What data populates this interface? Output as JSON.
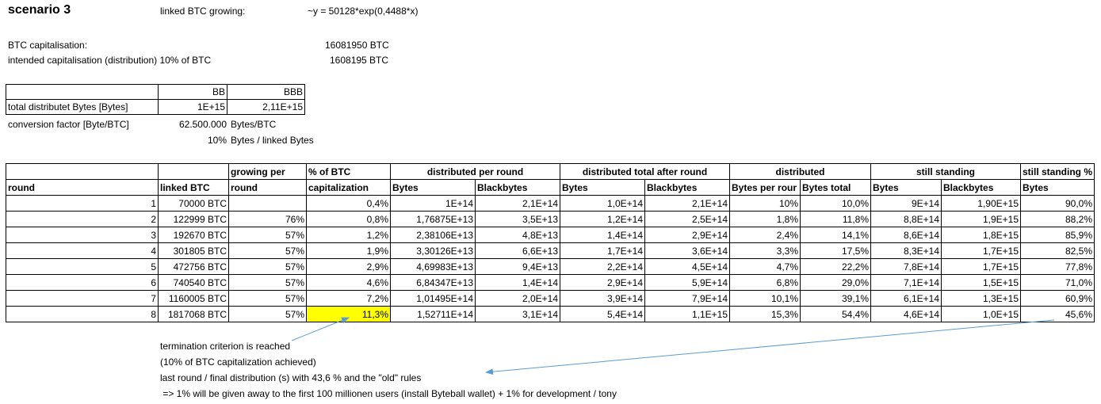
{
  "header": {
    "title": "scenario 3",
    "linked_label": "linked BTC growing:",
    "formula": "~y = 50128*exp(0,4488*x)"
  },
  "capitalisation": {
    "btc_label": "BTC capitalisation:",
    "btc_value": "16081950 BTC",
    "intended_label": "intended capitalisation (distribution) 10% of BTC",
    "intended_value": "1608195 BTC"
  },
  "bytes_table": {
    "col1": "BB",
    "col2": "BBB",
    "row_label": "total distributet Bytes [Bytes]",
    "bb_value": "1E+15",
    "bbb_value": "2,11E+15"
  },
  "conversion": {
    "label": "conversion factor [Byte/BTC]",
    "value": "62.500.000",
    "unit": "Bytes/BTC",
    "pct": "10%",
    "pct_unit": "Bytes / linked Bytes"
  },
  "main_table": {
    "headers_top": {
      "growing": "growing per",
      "pct_btc": "% of BTC",
      "distributed_per_round": "distributed per round",
      "distributed_total": "distributed total after round",
      "distributed": "distributed",
      "still_standing": "still standing",
      "still_standing_pct": "still standing %"
    },
    "headers_sub": {
      "round": "round",
      "linked_btc": "linked BTC",
      "growing": "round",
      "pct_btc": "capitalization",
      "dpr_bytes": "Bytes",
      "dpr_blackbytes": "Blackbytes",
      "dt_bytes": "Bytes",
      "dt_blackbytes": "Blackbytes",
      "d_bytes_per_round": "Bytes per rour",
      "d_bytes_total": "Bytes total",
      "ss_bytes": "Bytes",
      "ss_blackbytes": "Blackbytes",
      "ssp_bytes": "Bytes"
    },
    "rows": [
      [
        "1",
        "70000 BTC",
        "",
        "0,4%",
        "1E+14",
        "2,1E+14",
        "1,0E+14",
        "2,1E+14",
        "10%",
        "10,0%",
        "9E+14",
        "1,90E+15",
        "90,0%"
      ],
      [
        "2",
        "122999 BTC",
        "76%",
        "0,8%",
        "1,76875E+13",
        "3,5E+13",
        "1,2E+14",
        "2,5E+14",
        "1,8%",
        "11,8%",
        "8,8E+14",
        "1,9E+15",
        "88,2%"
      ],
      [
        "3",
        "192670 BTC",
        "57%",
        "1,2%",
        "2,38106E+13",
        "4,8E+13",
        "1,4E+14",
        "2,9E+14",
        "2,4%",
        "14,1%",
        "8,6E+14",
        "1,8E+15",
        "85,9%"
      ],
      [
        "4",
        "301805 BTC",
        "57%",
        "1,9%",
        "3,30126E+13",
        "6,6E+13",
        "1,7E+14",
        "3,6E+14",
        "3,3%",
        "17,5%",
        "8,3E+14",
        "1,7E+15",
        "82,5%"
      ],
      [
        "5",
        "472756 BTC",
        "57%",
        "2,9%",
        "4,69983E+13",
        "9,4E+13",
        "2,2E+14",
        "4,5E+14",
        "4,7%",
        "22,2%",
        "7,8E+14",
        "1,7E+15",
        "77,8%"
      ],
      [
        "6",
        "740540 BTC",
        "57%",
        "4,6%",
        "6,84347E+13",
        "1,4E+14",
        "2,9E+14",
        "5,9E+14",
        "6,8%",
        "29,0%",
        "7,1E+14",
        "1,5E+15",
        "71,0%"
      ],
      [
        "7",
        "1160005 BTC",
        "57%",
        "7,2%",
        "1,01495E+14",
        "2,0E+14",
        "3,9E+14",
        "7,9E+14",
        "10,1%",
        "39,1%",
        "6,1E+14",
        "1,3E+15",
        "60,9%"
      ],
      [
        "8",
        "1817068 BTC",
        "57%",
        "11,3%",
        "1,52711E+14",
        "3,1E+14",
        "5,4E+14",
        "1,1E+15",
        "15,3%",
        "54,4%",
        "4,6E+14",
        "1,0E+15",
        "45,6%"
      ]
    ]
  },
  "notes": {
    "line1": "termination criterion is reached",
    "line2": "(10% of BTC capitalization achieved)",
    "line3": "last round / final distribution (s) with 43,6 % and the \"old\" rules",
    "line4": " => 1% will be given away to the first 100 millionen users (install Byteball wallet) + 1% for development / tony"
  },
  "colors": {
    "highlight": "#ffff00",
    "arrow": "#5b9bd5"
  }
}
